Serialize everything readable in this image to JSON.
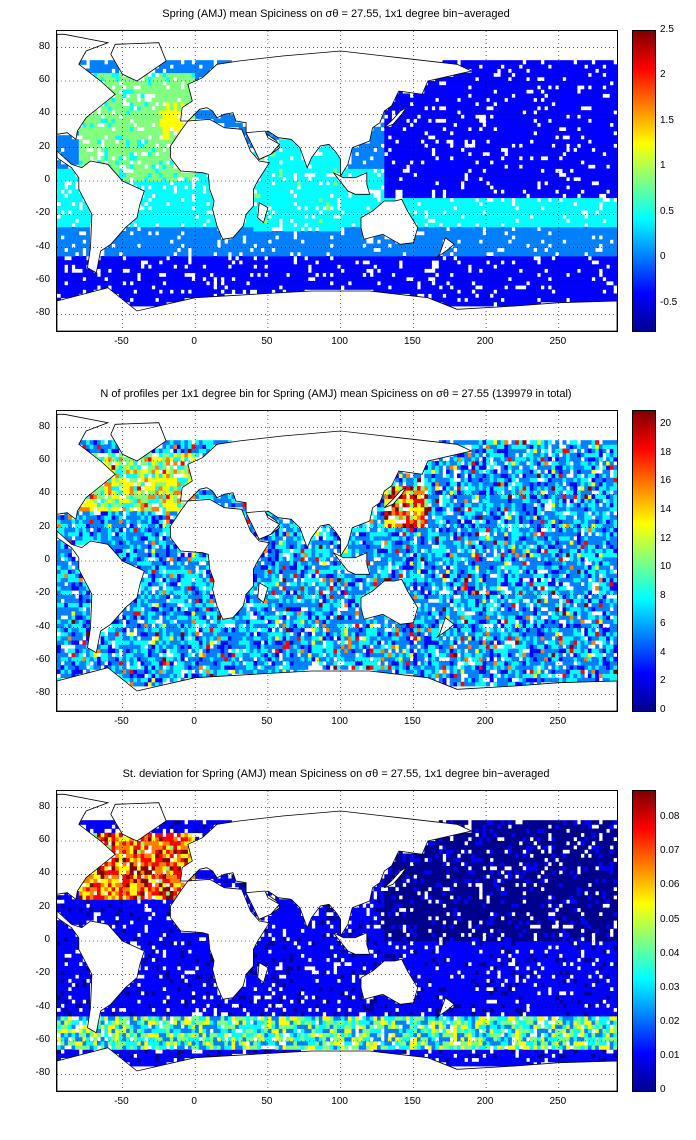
{
  "colormap": [
    "#00008f",
    "#0000ff",
    "#0080ff",
    "#00ffff",
    "#80ff80",
    "#ffff00",
    "#ff8000",
    "#ff0000",
    "#800000"
  ],
  "land_color": "#ffffff",
  "x_axis": {
    "ticks": [
      -50,
      0,
      50,
      100,
      150,
      200,
      250
    ],
    "range": [
      -95,
      290
    ]
  },
  "y_axis": {
    "ticks": [
      80,
      60,
      40,
      20,
      0,
      -20,
      -40,
      -60,
      -80
    ],
    "range": [
      -90,
      90
    ]
  },
  "panels": [
    {
      "title": "Spring (AMJ) mean Spiciness on σθ = 27.55, 1x1 degree bin−averaged",
      "colorbar": {
        "ticks": [
          "2.5",
          "2",
          "1.5",
          "1",
          "0.5",
          "0",
          "-0.5"
        ],
        "range": [
          -0.8,
          2.5
        ]
      },
      "mode": "mean"
    },
    {
      "title": "N of profiles per 1x1 degree bin for Spring (AMJ) mean Spiciness on σθ = 27.55 (139979 in total)",
      "colorbar": {
        "ticks": [
          "20",
          "18",
          "16",
          "14",
          "12",
          "10",
          "8",
          "6",
          "4",
          "2",
          "0"
        ],
        "range": [
          0,
          21
        ]
      },
      "mode": "count"
    },
    {
      "title": "St. deviation for Spring (AMJ) mean Spiciness on σθ = 27.55, 1x1 degree bin−averaged",
      "colorbar": {
        "ticks": [
          "0.08",
          "0.07",
          "0.06",
          "0.05",
          "0.04",
          "0.03",
          "0.02",
          "0.01",
          "0"
        ],
        "range": [
          0,
          0.088
        ]
      },
      "mode": "std"
    }
  ]
}
